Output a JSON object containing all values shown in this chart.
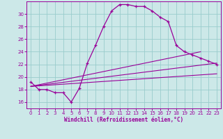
{
  "xlabel": "Windchill (Refroidissement éolien,°C)",
  "background_color": "#cce8e8",
  "grid_color": "#99cccc",
  "line_color": "#990099",
  "spine_color": "#990099",
  "xlim": [
    -0.5,
    23.5
  ],
  "ylim": [
    15.0,
    32.0
  ],
  "yticks": [
    16,
    18,
    20,
    22,
    24,
    26,
    28,
    30
  ],
  "xticks": [
    0,
    1,
    2,
    3,
    4,
    5,
    6,
    7,
    8,
    9,
    10,
    11,
    12,
    13,
    14,
    15,
    16,
    17,
    18,
    19,
    20,
    21,
    22,
    23
  ],
  "main_x": [
    0,
    1,
    2,
    3,
    4,
    5,
    6,
    7,
    8,
    9,
    10,
    11,
    12,
    13,
    14,
    15,
    16,
    17,
    18,
    19,
    20,
    21,
    22,
    23
  ],
  "main_y": [
    19.2,
    18.0,
    18.0,
    17.5,
    17.5,
    16.0,
    18.2,
    22.2,
    25.0,
    28.0,
    30.5,
    31.5,
    31.5,
    31.2,
    31.2,
    30.5,
    29.5,
    28.8,
    25.0,
    24.0,
    23.5,
    23.0,
    22.5,
    22.0
  ],
  "line1_x": [
    0,
    21
  ],
  "line1_y": [
    18.5,
    24.0
  ],
  "line2_x": [
    0,
    23
  ],
  "line2_y": [
    18.5,
    22.2
  ],
  "line3_x": [
    0,
    23
  ],
  "line3_y": [
    18.5,
    20.5
  ],
  "tick_fontsize": 5,
  "label_fontsize": 5.5
}
